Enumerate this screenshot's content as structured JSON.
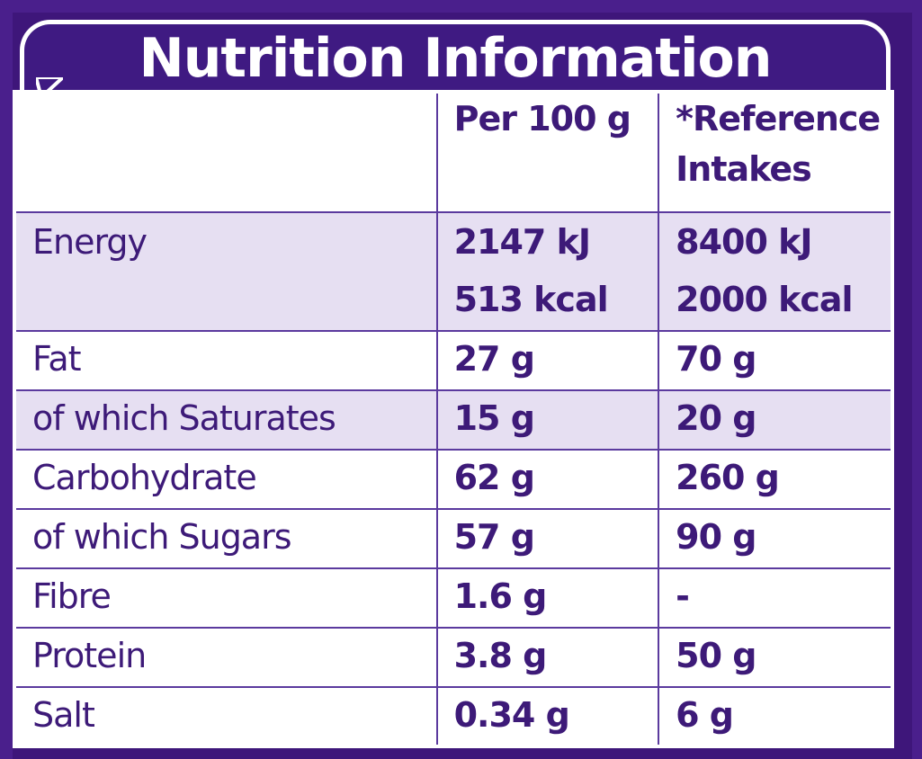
{
  "title": "Nutrition Information",
  "headers": {
    "per100": "Per 100 g",
    "reference_line1": "*Reference",
    "reference_line2": "Intakes"
  },
  "energy": {
    "label": "Energy",
    "per100_kj": "2147 kJ",
    "per100_kcal": "513 kcal",
    "ref_kj": "8400 kJ",
    "ref_kcal": "2000 kcal"
  },
  "rows": [
    {
      "label": "Fat",
      "per100": "27 g",
      "ref": "70 g"
    },
    {
      "label": "of which Saturates",
      "per100": "15 g",
      "ref": "20 g"
    },
    {
      "label": "Carbohydrate",
      "per100": "62 g",
      "ref": "260 g"
    },
    {
      "label": "of which Sugars",
      "per100": "57 g",
      "ref": "90 g"
    },
    {
      "label": "Fibre",
      "per100": "1.6 g",
      "ref": "-"
    },
    {
      "label": "Protein",
      "per100": "3.8 g",
      "ref": "50 g"
    },
    {
      "label": "Salt",
      "per100": "0.34 g",
      "ref": "6 g"
    }
  ],
  "colors": {
    "brand_purple": "#3f1a82",
    "text_purple": "#3d1a78",
    "row_shade": "#e6dff2"
  }
}
